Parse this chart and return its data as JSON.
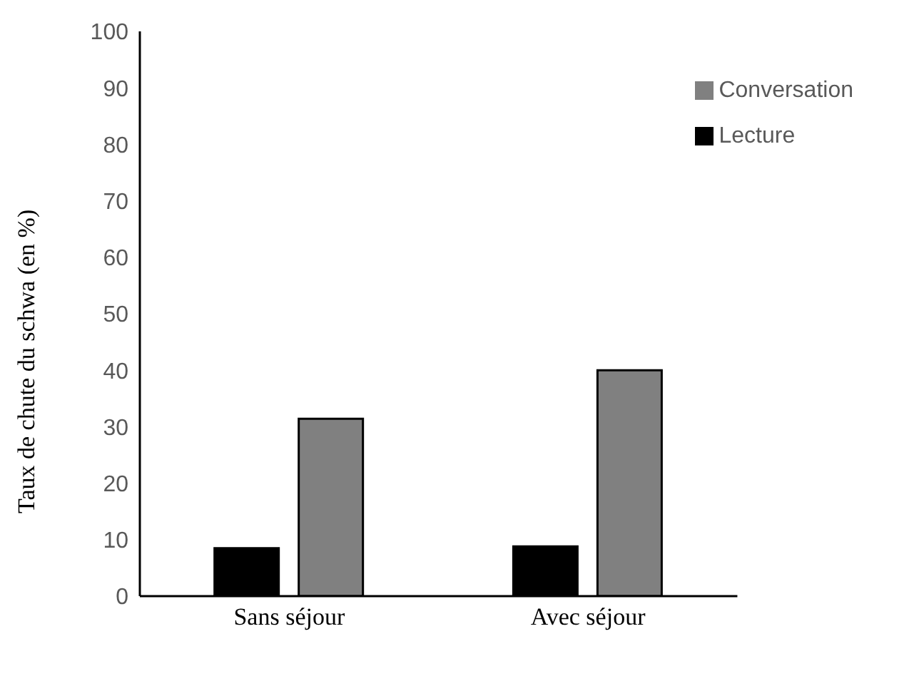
{
  "chart_data": {
    "type": "bar",
    "ylabel": "Taux de chute du schwa (en %)",
    "categories": [
      "Sans séjour",
      "Avec séjour"
    ],
    "series": [
      {
        "name": "Lecture",
        "color": "#000000",
        "values": [
          8.5,
          8.8
        ]
      },
      {
        "name": "Conversation",
        "color": "#808080",
        "values": [
          31.4,
          40
        ]
      }
    ],
    "ylim": [
      0,
      100
    ],
    "yticks": [
      0,
      10,
      20,
      30,
      40,
      50,
      60,
      70,
      80,
      90,
      100
    ],
    "grid": false,
    "legend": "top right"
  }
}
